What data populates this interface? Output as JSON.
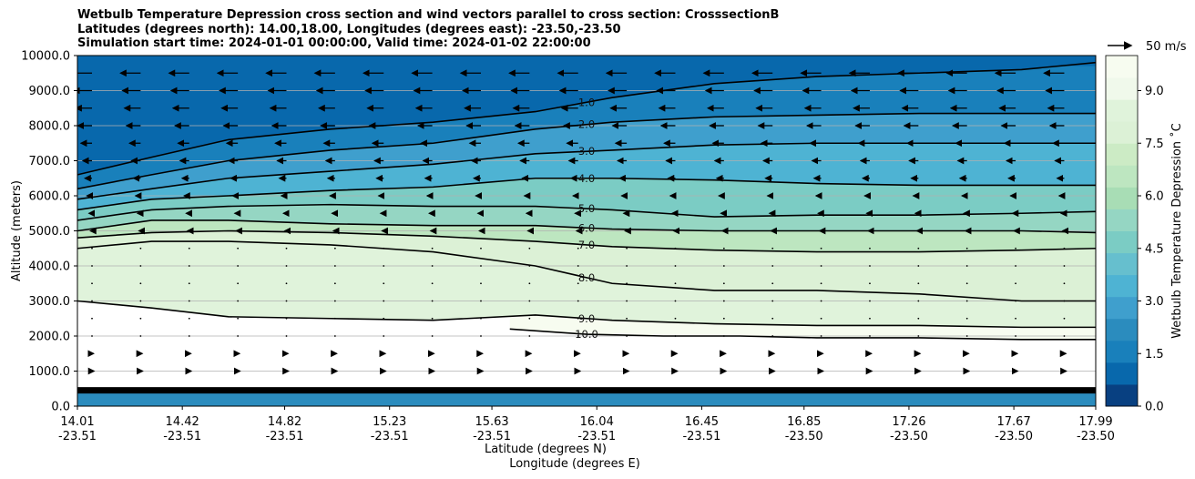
{
  "chart_data": {
    "type": "contour",
    "title_lines": [
      "Wetbulb Temperature Depression cross section and wind vectors parallel to cross section: CrosssectionB",
      "Latitudes (degrees north): 14.00,18.00, Longitudes (degrees east): -23.50,-23.50",
      "Simulation start time: 2024-01-01 00:00:00, Valid time: 2024-01-02 22:00:00"
    ],
    "ylabel": "Altitude (meters)",
    "xlabel_lat": "Latitude (degrees N)",
    "xlabel_lon": "Longitude (degrees E)",
    "ylim": [
      0,
      10000
    ],
    "y_ticks": [
      "0.0",
      "1000.0",
      "2000.0",
      "3000.0",
      "4000.0",
      "5000.0",
      "6000.0",
      "7000.0",
      "8000.0",
      "9000.0",
      "10000.0"
    ],
    "x_ticks": [
      {
        "lat": "14.01",
        "lon": "-23.51"
      },
      {
        "lat": "14.42",
        "lon": "-23.51"
      },
      {
        "lat": "14.82",
        "lon": "-23.51"
      },
      {
        "lat": "15.23",
        "lon": "-23.51"
      },
      {
        "lat": "15.63",
        "lon": "-23.51"
      },
      {
        "lat": "16.04",
        "lon": "-23.51"
      },
      {
        "lat": "16.45",
        "lon": "-23.51"
      },
      {
        "lat": "16.85",
        "lon": "-23.50"
      },
      {
        "lat": "17.26",
        "lon": "-23.50"
      },
      {
        "lat": "17.67",
        "lon": "-23.50"
      },
      {
        "lat": "17.99",
        "lon": "-23.50"
      }
    ],
    "grid": "horizontal",
    "colorbar": {
      "label": "Wetbulb Temperature Depression ˚C",
      "ticks": [
        "0.0",
        "1.5",
        "3.0",
        "4.5",
        "6.0",
        "7.5",
        "9.0"
      ],
      "range": [
        0,
        10
      ],
      "colors": [
        "#084081",
        "#0868ac",
        "#1980bb",
        "#2b8cbe",
        "#3f9fcd",
        "#4eb3d3",
        "#66bfce",
        "#7bccc4",
        "#95d6c3",
        "#a8ddb5",
        "#bde6c0",
        "#ccebc5",
        "#dcf1d6",
        "#e0f3db",
        "#f0f9eb",
        "#f7fcf0"
      ]
    },
    "wind_reference": {
      "label": "50 m/s",
      "speed_ms": 50
    },
    "contour_levels": [
      "1.0",
      "2.0",
      "3.0",
      "4.0",
      "5.0",
      "6.0",
      "7.0",
      "8.0",
      "9.0",
      "10.0"
    ],
    "band_values": [
      9,
      8,
      7,
      6,
      5,
      4,
      3,
      2.5,
      2,
      1.5,
      1
    ],
    "contours": [
      {
        "level": 1.0,
        "x": [
          14.01,
          14.3,
          14.6,
          15.0,
          15.4,
          15.8,
          16.1,
          16.5,
          16.9,
          17.3,
          17.7,
          17.99
        ],
        "y": [
          6600,
          7100,
          7600,
          7900,
          8100,
          8400,
          8800,
          9200,
          9400,
          9500,
          9600,
          9800
        ]
      },
      {
        "level": 2.0,
        "x": [
          14.01,
          14.3,
          14.6,
          15.0,
          15.4,
          15.8,
          16.1,
          16.5,
          16.9,
          17.3,
          17.7,
          17.99
        ],
        "y": [
          6200,
          6600,
          7000,
          7300,
          7500,
          7900,
          8100,
          8250,
          8300,
          8350,
          8350,
          8350
        ]
      },
      {
        "level": 3.0,
        "x": [
          14.01,
          14.3,
          14.6,
          15.0,
          15.4,
          15.8,
          16.1,
          16.5,
          16.9,
          17.3,
          17.7,
          17.99
        ],
        "y": [
          5900,
          6200,
          6500,
          6700,
          6900,
          7200,
          7300,
          7450,
          7500,
          7500,
          7500,
          7500
        ]
      },
      {
        "level": 4.0,
        "x": [
          14.01,
          14.3,
          14.6,
          15.0,
          15.4,
          15.8,
          16.1,
          16.5,
          16.9,
          17.3,
          17.7,
          17.99
        ],
        "y": [
          5600,
          5900,
          6000,
          6150,
          6250,
          6500,
          6500,
          6450,
          6350,
          6300,
          6300,
          6300
        ]
      },
      {
        "level": 5.0,
        "x": [
          14.01,
          14.3,
          14.6,
          15.0,
          15.4,
          15.8,
          16.1,
          16.5,
          16.9,
          17.3,
          17.7,
          17.99
        ],
        "y": [
          5300,
          5600,
          5700,
          5750,
          5700,
          5700,
          5600,
          5400,
          5450,
          5450,
          5500,
          5550
        ]
      },
      {
        "level": 6.0,
        "x": [
          14.01,
          14.3,
          14.6,
          15.0,
          15.4,
          15.8,
          16.1,
          16.5,
          16.9,
          17.3,
          17.7,
          17.99
        ],
        "y": [
          5000,
          5300,
          5300,
          5200,
          5150,
          5150,
          5050,
          5000,
          5000,
          5000,
          5000,
          4950
        ]
      },
      {
        "level": 7.0,
        "x": [
          14.01,
          14.3,
          14.6,
          15.0,
          15.4,
          15.8,
          16.1,
          16.5,
          16.9,
          17.3,
          17.7,
          17.99
        ],
        "y": [
          4800,
          4950,
          5000,
          4950,
          4850,
          4700,
          4550,
          4450,
          4400,
          4400,
          4450,
          4500
        ]
      },
      {
        "level": 8.0,
        "x": [
          14.01,
          14.3,
          14.6,
          15.0,
          15.4,
          15.8,
          16.1,
          16.5,
          16.9,
          17.3,
          17.7,
          17.99
        ],
        "y": [
          4500,
          4700,
          4700,
          4600,
          4400,
          4000,
          3500,
          3300,
          3300,
          3200,
          3000,
          3000
        ]
      },
      {
        "level": 9.0,
        "x": [
          14.01,
          14.3,
          14.6,
          15.0,
          15.4,
          15.8,
          16.1,
          16.5,
          16.9,
          17.3,
          17.7,
          17.99
        ],
        "y": [
          3000,
          2800,
          2550,
          2500,
          2450,
          2600,
          2450,
          2350,
          2300,
          2300,
          2250,
          2250
        ]
      },
      {
        "level": 10.0,
        "x": [
          15.7,
          16.0,
          16.3,
          16.6,
          16.9,
          17.3,
          17.7,
          17.99
        ],
        "y": [
          2200,
          2050,
          2000,
          2000,
          1950,
          1950,
          1900,
          1900
        ]
      }
    ],
    "surface_layer": {
      "top_m": 400,
      "bottom_value": 1.0
    },
    "wind_rows": [
      {
        "z": 9500,
        "u": -1.0
      },
      {
        "z": 9000,
        "u": -0.9
      },
      {
        "z": 8500,
        "u": -0.8
      },
      {
        "z": 8000,
        "u": -0.7
      },
      {
        "z": 7500,
        "u": -0.55
      },
      {
        "z": 7000,
        "u": -0.45
      },
      {
        "z": 6500,
        "u": -0.35
      },
      {
        "z": 6000,
        "u": -0.25
      },
      {
        "z": 5500,
        "u": -0.15
      },
      {
        "z": 5000,
        "u": -0.08
      },
      {
        "z": 4500,
        "u": -0.05
      },
      {
        "z": 4000,
        "u": 0.0
      },
      {
        "z": 3500,
        "u": 0.0
      },
      {
        "z": 3000,
        "u": 0.0
      },
      {
        "z": 2500,
        "u": 0.0
      },
      {
        "z": 2000,
        "u": 0.05
      },
      {
        "z": 1500,
        "u": 0.08
      },
      {
        "z": 1000,
        "u": 0.1
      }
    ]
  }
}
